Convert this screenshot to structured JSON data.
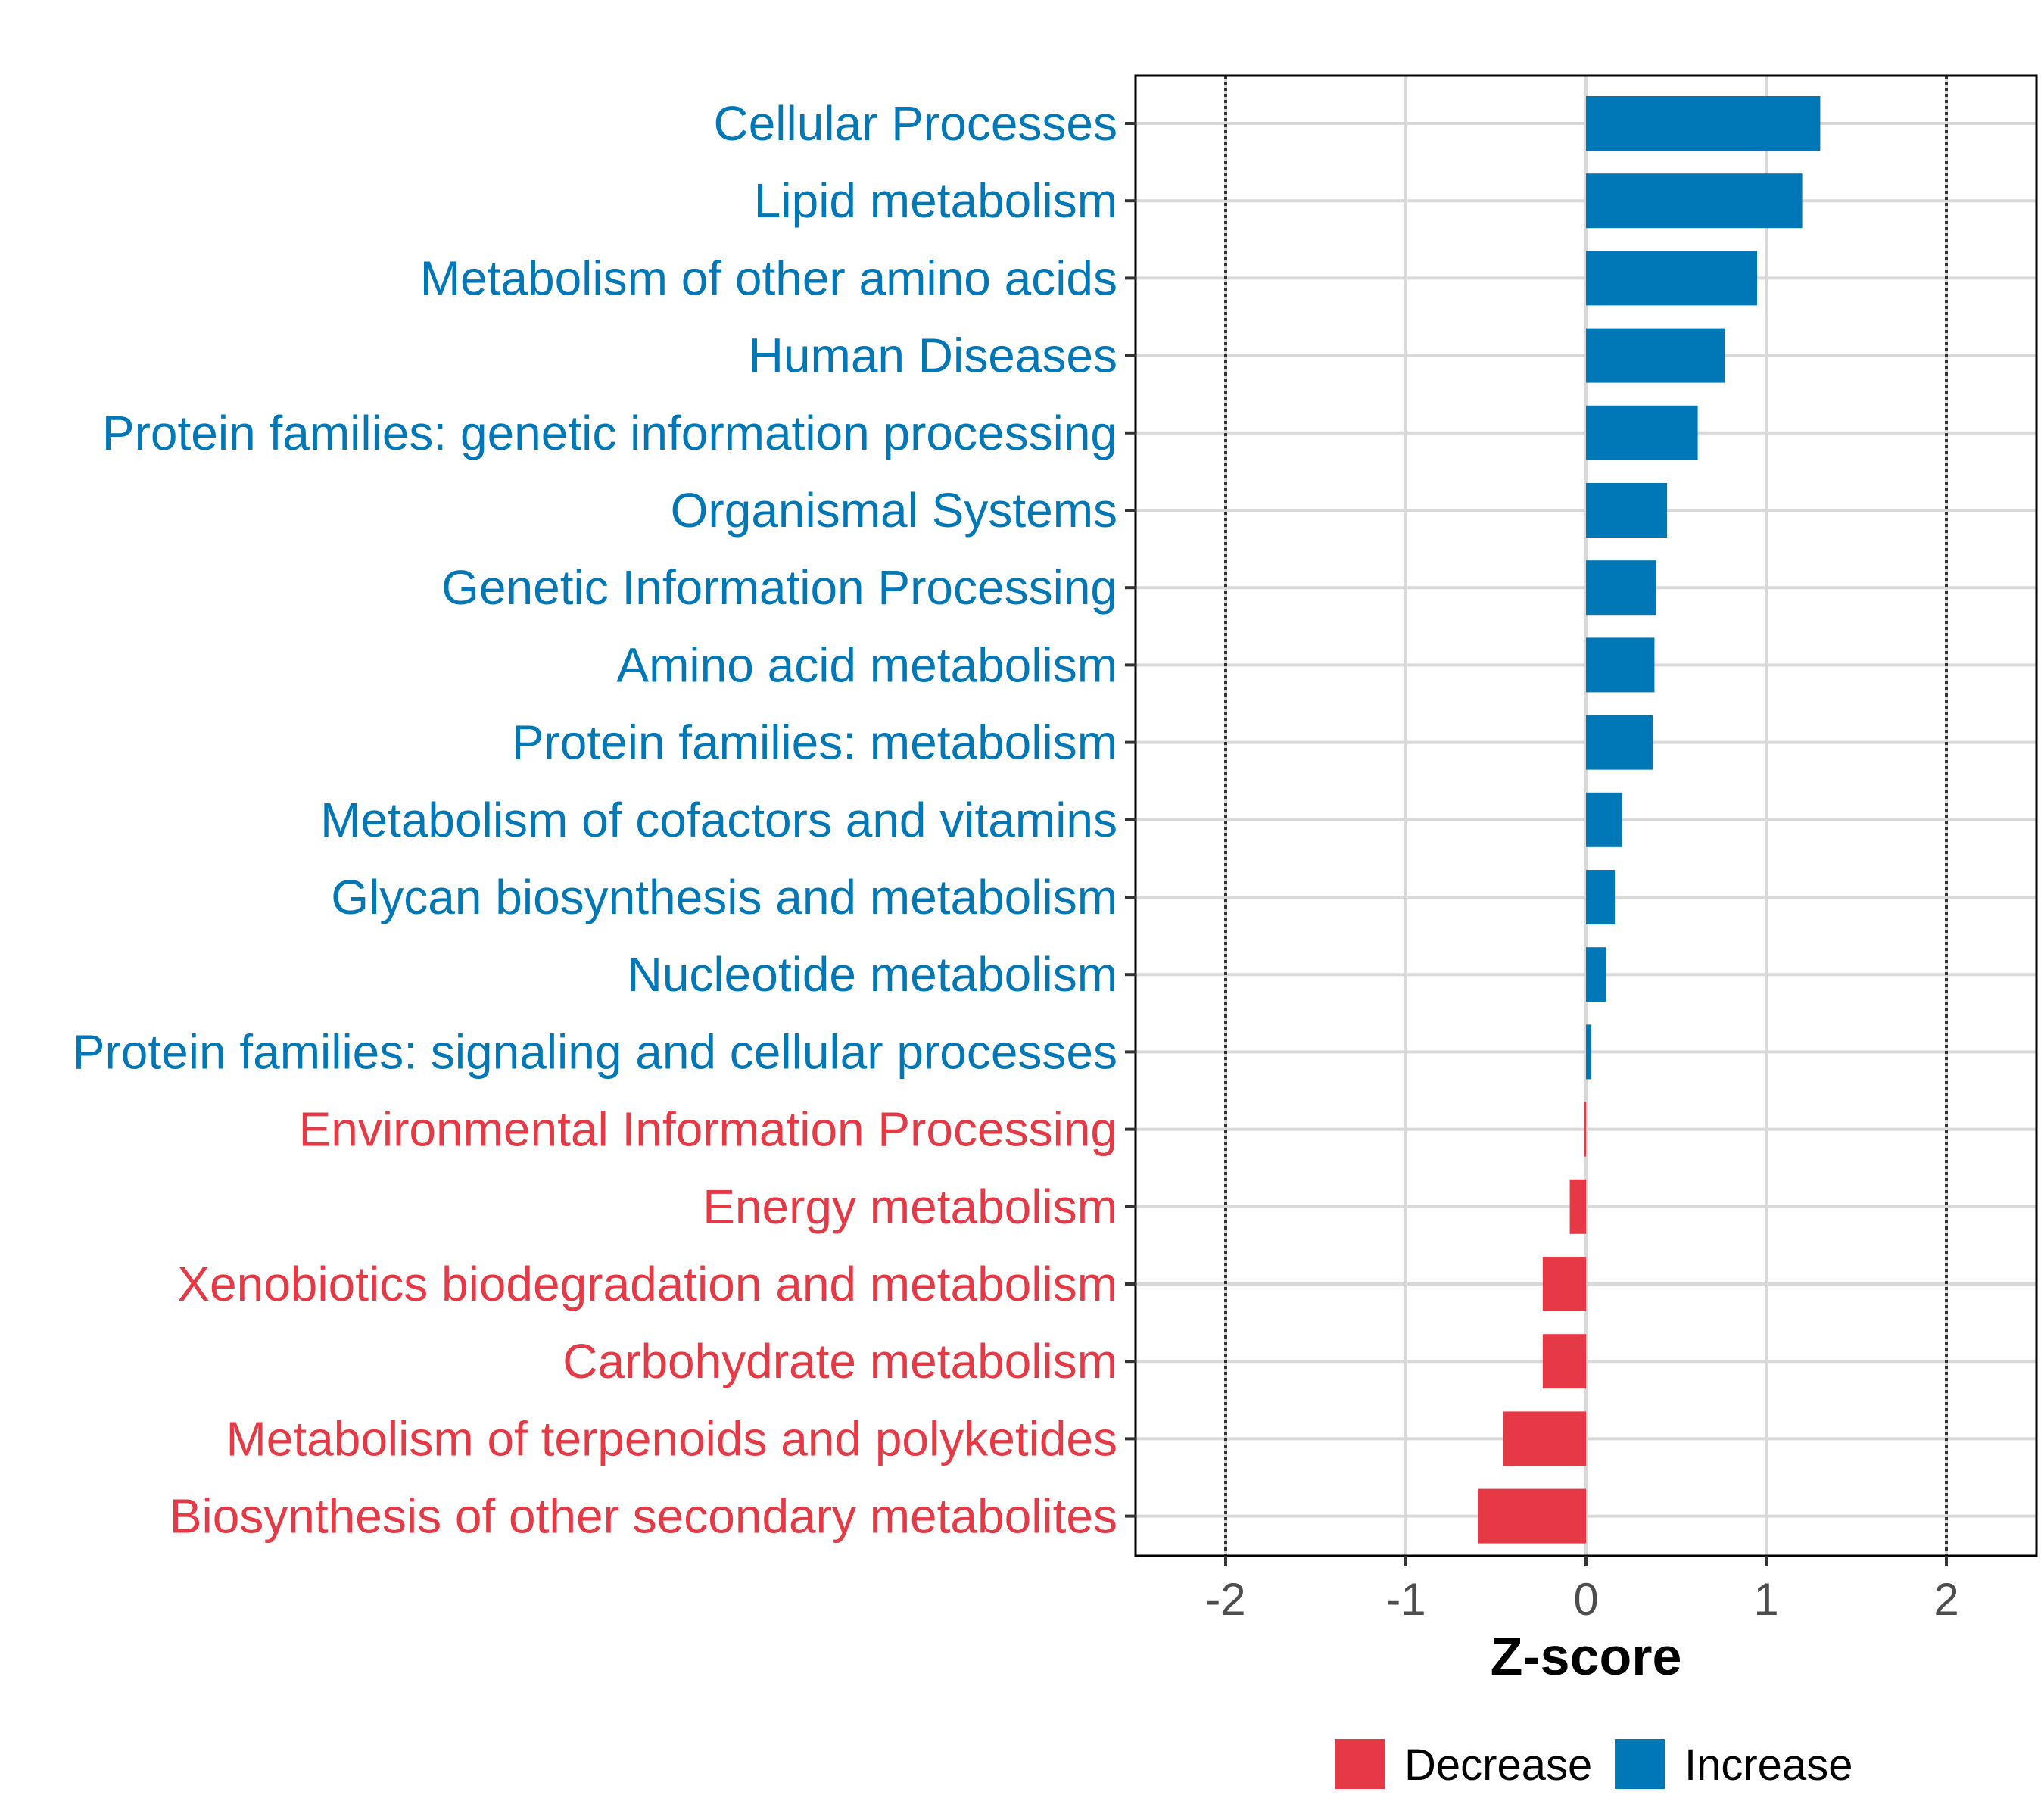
{
  "chart_data": {
    "type": "bar",
    "orientation": "horizontal",
    "xlabel": "Z-score",
    "xlim": [
      -2.5,
      2.5
    ],
    "x_ticks": [
      -2,
      -1,
      0,
      1,
      2
    ],
    "x_tick_labels": [
      "-2",
      "-1",
      "0",
      "1",
      "2"
    ],
    "reference_lines": [
      -2,
      2
    ],
    "grid": true,
    "categories": [
      "Cellular Processes",
      "Lipid metabolism",
      "Metabolism of other amino acids",
      "Human Diseases",
      "Protein families: genetic information processing",
      "Organismal Systems",
      "Genetic Information Processing",
      "Amino acid metabolism",
      "Protein families: metabolism",
      "Metabolism of cofactors and vitamins",
      "Glycan biosynthesis and metabolism",
      "Nucleotide metabolism",
      "Protein families: signaling and cellular processes",
      "Environmental Information Processing",
      "Energy metabolism",
      "Xenobiotics biodegradation and metabolism",
      "Carbohydrate metabolism",
      "Metabolism of terpenoids and polyketides",
      "Biosynthesis of other secondary metabolites"
    ],
    "values": [
      1.3,
      1.2,
      0.95,
      0.77,
      0.62,
      0.45,
      0.39,
      0.38,
      0.37,
      0.2,
      0.16,
      0.11,
      0.03,
      -0.01,
      -0.09,
      -0.24,
      -0.24,
      -0.46,
      -0.6
    ],
    "groups": [
      "Increase",
      "Increase",
      "Increase",
      "Increase",
      "Increase",
      "Increase",
      "Increase",
      "Increase",
      "Increase",
      "Increase",
      "Increase",
      "Increase",
      "Increase",
      "Decrease",
      "Decrease",
      "Decrease",
      "Decrease",
      "Decrease",
      "Decrease"
    ],
    "legend": {
      "position": "bottom",
      "entries": [
        {
          "label": "Decrease",
          "color": "#e63946"
        },
        {
          "label": "Increase",
          "color": "#0077b6"
        }
      ]
    },
    "colors": {
      "Increase": "#0077b6",
      "Decrease": "#e63946"
    }
  }
}
